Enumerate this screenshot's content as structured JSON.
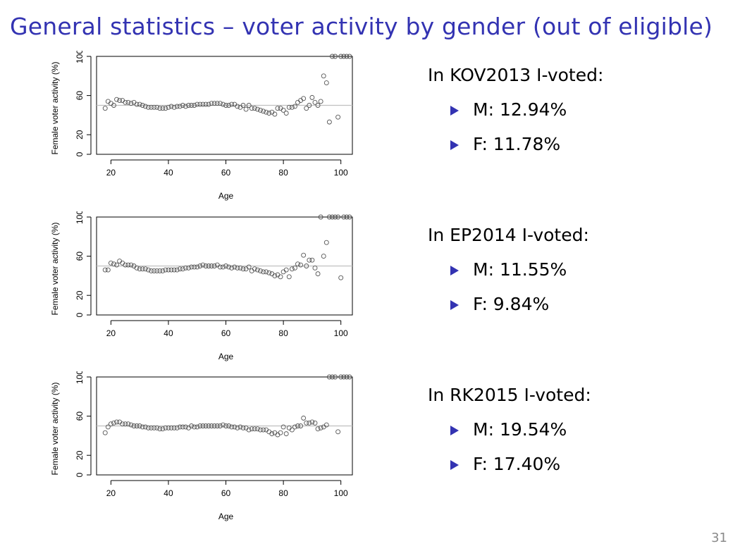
{
  "slide": {
    "title": "General statistics – voter activity by gender (out of eligible)",
    "page_number": "31"
  },
  "stats": [
    {
      "heading": "In KOV2013 I-voted:",
      "items": [
        "M: 12.94%",
        "F: 11.78%"
      ]
    },
    {
      "heading": "In EP2014 I-voted:",
      "items": [
        "M: 11.55%",
        "F: 9.84%"
      ]
    },
    {
      "heading": "In RK2015 I-voted:",
      "items": [
        "M: 19.54%",
        "F: 17.40%"
      ]
    }
  ],
  "colors": {
    "title": "#3333b2",
    "bullet": "#3333b2",
    "reference_line": "#c0c0c0",
    "points": "#555555"
  },
  "chart_data": [
    {
      "type": "scatter",
      "xlabel": "Age",
      "ylabel": "Female voter activity (%)",
      "xlim": [
        15,
        104
      ],
      "ylim": [
        0,
        100
      ],
      "xticks": [
        20,
        40,
        60,
        80,
        100
      ],
      "yticks": [
        0,
        20,
        60,
        100
      ],
      "reference_line_y": 50,
      "grid": false,
      "x": [
        18,
        19,
        20,
        21,
        22,
        23,
        24,
        25,
        26,
        27,
        28,
        29,
        30,
        31,
        32,
        33,
        34,
        35,
        36,
        37,
        38,
        39,
        40,
        41,
        42,
        43,
        44,
        45,
        46,
        47,
        48,
        49,
        50,
        51,
        52,
        53,
        54,
        55,
        56,
        57,
        58,
        59,
        60,
        61,
        62,
        63,
        64,
        65,
        66,
        67,
        68,
        69,
        70,
        71,
        72,
        73,
        74,
        75,
        76,
        77,
        78,
        79,
        80,
        81,
        82,
        83,
        84,
        85,
        86,
        87,
        88,
        89,
        90,
        91,
        92,
        93,
        94,
        95,
        96,
        97,
        98,
        99,
        100,
        101,
        102,
        103
      ],
      "y": [
        47,
        54,
        52,
        50,
        56,
        55,
        55,
        53,
        53,
        52,
        53,
        51,
        51,
        50,
        49,
        48,
        48,
        48,
        48,
        47,
        47,
        47,
        48,
        49,
        48,
        49,
        49,
        50,
        49,
        50,
        50,
        50,
        51,
        51,
        51,
        51,
        51,
        52,
        52,
        52,
        52,
        51,
        50,
        50,
        51,
        51,
        49,
        48,
        50,
        46,
        50,
        47,
        47,
        46,
        45,
        44,
        43,
        42,
        43,
        41,
        47,
        47,
        45,
        42,
        48,
        48,
        49,
        53,
        55,
        57,
        47,
        50,
        58,
        53,
        50,
        54,
        80,
        73,
        33,
        100,
        100,
        38,
        100,
        100,
        100,
        100
      ]
    },
    {
      "type": "scatter",
      "xlabel": "Age",
      "ylabel": "Female voter activity (%)",
      "xlim": [
        15,
        104
      ],
      "ylim": [
        0,
        100
      ],
      "xticks": [
        20,
        40,
        60,
        80,
        100
      ],
      "yticks": [
        0,
        20,
        60,
        100
      ],
      "reference_line_y": 50,
      "grid": false,
      "x": [
        18,
        19,
        20,
        21,
        22,
        23,
        24,
        25,
        26,
        27,
        28,
        29,
        30,
        31,
        32,
        33,
        34,
        35,
        36,
        37,
        38,
        39,
        40,
        41,
        42,
        43,
        44,
        45,
        46,
        47,
        48,
        49,
        50,
        51,
        52,
        53,
        54,
        55,
        56,
        57,
        58,
        59,
        60,
        61,
        62,
        63,
        64,
        65,
        66,
        67,
        68,
        69,
        70,
        71,
        72,
        73,
        74,
        75,
        76,
        77,
        78,
        79,
        80,
        81,
        82,
        83,
        84,
        85,
        86,
        87,
        88,
        89,
        90,
        91,
        92,
        93,
        94,
        95,
        96,
        97,
        98,
        99,
        100,
        101,
        102,
        103
      ],
      "y": [
        46,
        46,
        53,
        52,
        51,
        55,
        53,
        51,
        51,
        51,
        50,
        48,
        47,
        47,
        47,
        46,
        45,
        45,
        45,
        45,
        45,
        46,
        46,
        46,
        46,
        46,
        47,
        47,
        48,
        48,
        49,
        49,
        49,
        50,
        51,
        50,
        50,
        50,
        50,
        51,
        49,
        49,
        50,
        49,
        48,
        49,
        48,
        48,
        47,
        47,
        49,
        45,
        47,
        46,
        45,
        44,
        44,
        43,
        42,
        40,
        41,
        39,
        44,
        46,
        39,
        47,
        48,
        52,
        51,
        61,
        50,
        56,
        56,
        48,
        42,
        100,
        60,
        74,
        100,
        100,
        100,
        100,
        38,
        100,
        100,
        100
      ]
    },
    {
      "type": "scatter",
      "xlabel": "Age",
      "ylabel": "Female voter activity (%)",
      "xlim": [
        15,
        104
      ],
      "ylim": [
        0,
        100
      ],
      "xticks": [
        20,
        40,
        60,
        80,
        100
      ],
      "yticks": [
        0,
        20,
        60,
        100
      ],
      "reference_line_y": 50,
      "grid": false,
      "x": [
        18,
        19,
        20,
        21,
        22,
        23,
        24,
        25,
        26,
        27,
        28,
        29,
        30,
        31,
        32,
        33,
        34,
        35,
        36,
        37,
        38,
        39,
        40,
        41,
        42,
        43,
        44,
        45,
        46,
        47,
        48,
        49,
        50,
        51,
        52,
        53,
        54,
        55,
        56,
        57,
        58,
        59,
        60,
        61,
        62,
        63,
        64,
        65,
        66,
        67,
        68,
        69,
        70,
        71,
        72,
        73,
        74,
        75,
        76,
        77,
        78,
        79,
        80,
        81,
        82,
        83,
        84,
        85,
        86,
        87,
        88,
        89,
        90,
        91,
        92,
        93,
        94,
        95,
        96,
        97,
        98,
        99,
        100,
        101,
        102,
        103
      ],
      "y": [
        43,
        49,
        52,
        53,
        54,
        54,
        52,
        52,
        52,
        51,
        50,
        50,
        50,
        49,
        49,
        48,
        48,
        48,
        48,
        47,
        47,
        48,
        48,
        48,
        48,
        48,
        49,
        49,
        49,
        48,
        50,
        49,
        49,
        50,
        50,
        50,
        50,
        50,
        50,
        50,
        50,
        51,
        50,
        50,
        49,
        49,
        48,
        49,
        48,
        48,
        46,
        47,
        47,
        47,
        46,
        46,
        46,
        44,
        42,
        43,
        41,
        43,
        49,
        42,
        48,
        46,
        49,
        50,
        50,
        58,
        53,
        53,
        54,
        53,
        47,
        48,
        49,
        51,
        100,
        100,
        100,
        44,
        100,
        100,
        100,
        100
      ]
    }
  ]
}
